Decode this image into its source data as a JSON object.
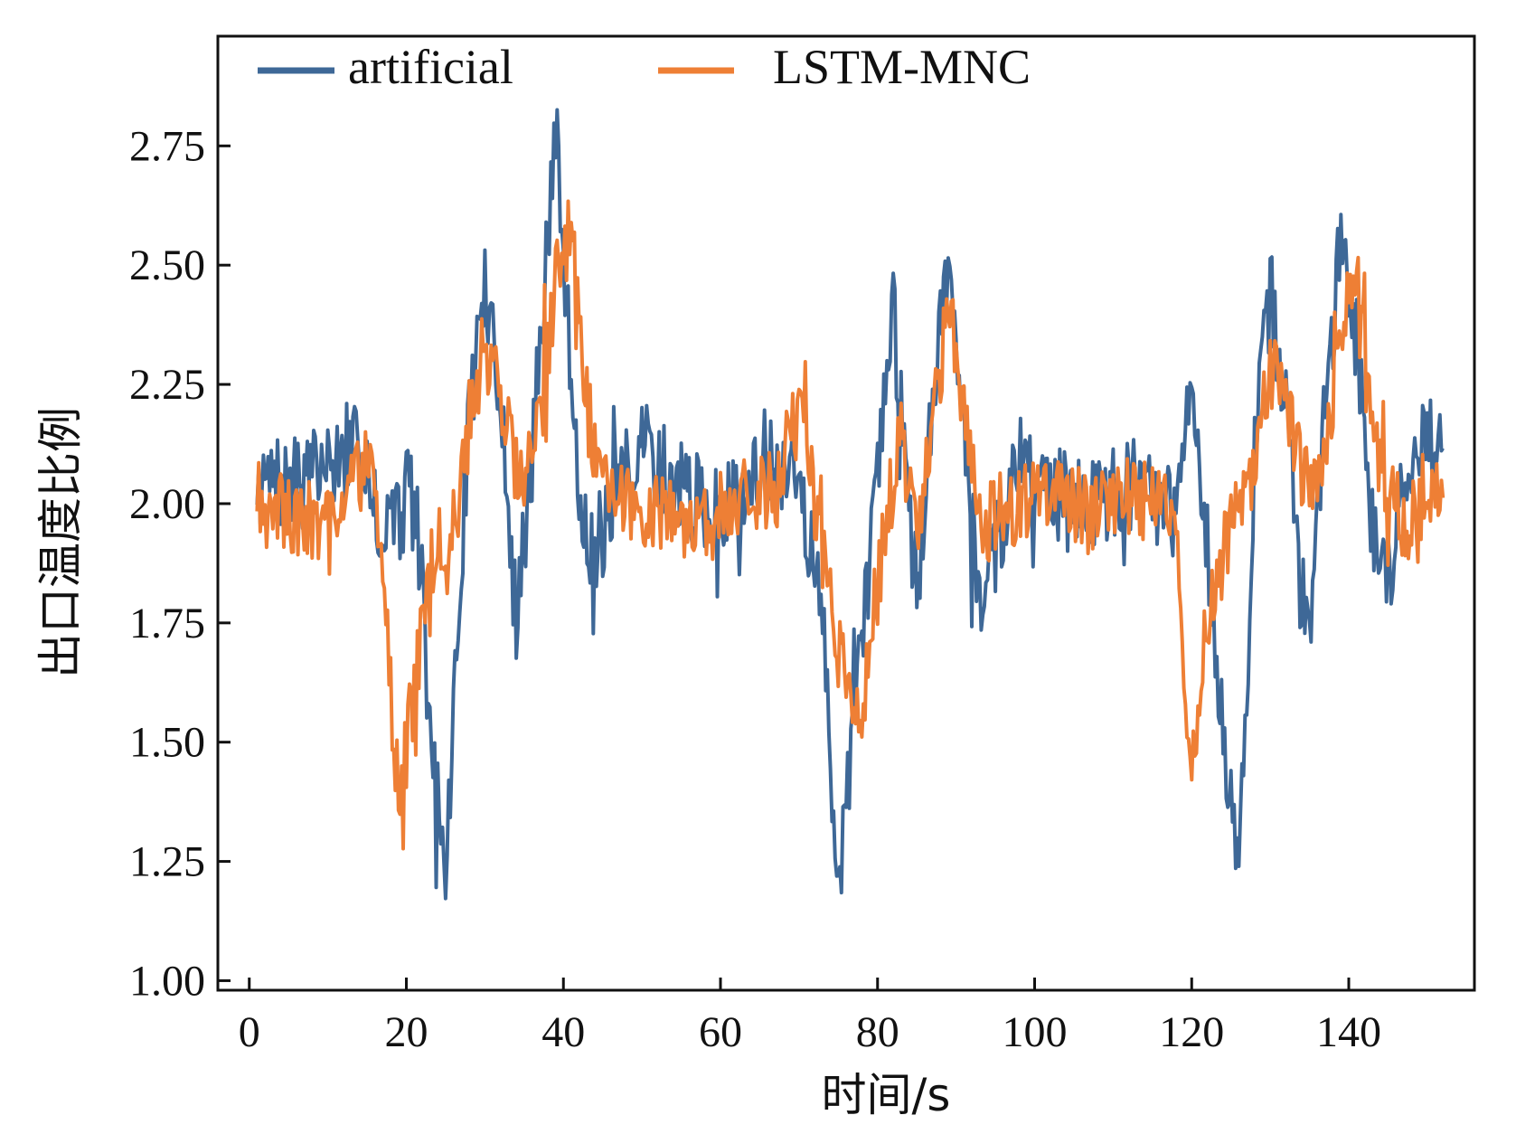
{
  "chart_data": {
    "type": "line",
    "title": "",
    "xlabel": "时间/s",
    "ylabel": "出口温度比例",
    "xlim": [
      -4,
      156
    ],
    "ylim": [
      0.98,
      2.98
    ],
    "xticks": [
      0,
      20,
      40,
      60,
      80,
      100,
      120,
      140
    ],
    "xtick_labels": [
      "0",
      "20",
      "40",
      "60",
      "80",
      "100",
      "120",
      "140"
    ],
    "yticks": [
      1.0,
      1.25,
      1.5,
      1.75,
      2.0,
      2.25,
      2.5,
      2.75
    ],
    "ytick_labels": [
      "1.00",
      "1.25",
      "1.50",
      "1.75",
      "2.00",
      "2.25",
      "2.50",
      "2.75"
    ],
    "grid": false,
    "legend_position": "top",
    "series": [
      {
        "name": "artificial",
        "color": "#3e6897",
        "anchors": [
          [
            1,
            2.05
          ],
          [
            5,
            2.03
          ],
          [
            10,
            2.08
          ],
          [
            15,
            2.12
          ],
          [
            17,
            1.92
          ],
          [
            19,
            2.05
          ],
          [
            20,
            2.1
          ],
          [
            22,
            1.85
          ],
          [
            23,
            1.5
          ],
          [
            25,
            1.22
          ],
          [
            26,
            1.55
          ],
          [
            28,
            2.2
          ],
          [
            30,
            2.45
          ],
          [
            32,
            2.2
          ],
          [
            34,
            1.75
          ],
          [
            36,
            2.1
          ],
          [
            38,
            2.55
          ],
          [
            39,
            2.8
          ],
          [
            40,
            2.5
          ],
          [
            42,
            2.05
          ],
          [
            44,
            1.85
          ],
          [
            46,
            2.0
          ],
          [
            50,
            2.12
          ],
          [
            55,
            2.03
          ],
          [
            60,
            1.97
          ],
          [
            65,
            2.08
          ],
          [
            70,
            2.06
          ],
          [
            73,
            1.75
          ],
          [
            75,
            1.2
          ],
          [
            76,
            1.4
          ],
          [
            78,
            1.7
          ],
          [
            80,
            2.1
          ],
          [
            82,
            2.4
          ],
          [
            83,
            2.2
          ],
          [
            85,
            1.8
          ],
          [
            87,
            2.2
          ],
          [
            89,
            2.55
          ],
          [
            91,
            2.15
          ],
          [
            93,
            1.8
          ],
          [
            95,
            1.9
          ],
          [
            98,
            2.1
          ],
          [
            103,
            2.02
          ],
          [
            108,
            2.0
          ],
          [
            113,
            2.05
          ],
          [
            116,
            1.98
          ],
          [
            118,
            2.0
          ],
          [
            120,
            2.25
          ],
          [
            122,
            1.9
          ],
          [
            124,
            1.5
          ],
          [
            126,
            1.25
          ],
          [
            127,
            1.55
          ],
          [
            128,
            2.1
          ],
          [
            130,
            2.45
          ],
          [
            132,
            2.2
          ],
          [
            134,
            1.8
          ],
          [
            135,
            1.75
          ],
          [
            137,
            2.2
          ],
          [
            139,
            2.55
          ],
          [
            141,
            2.35
          ],
          [
            143,
            1.95
          ],
          [
            145,
            1.85
          ],
          [
            147,
            2.05
          ],
          [
            149,
            2.15
          ],
          [
            152,
            2.1
          ]
        ],
        "noise": 0.1,
        "seed": 7
      },
      {
        "name": "LSTM-MNC",
        "color": "#ee7f35",
        "anchors": [
          [
            1,
            2.03
          ],
          [
            5,
            1.96
          ],
          [
            10,
            1.98
          ],
          [
            15,
            2.08
          ],
          [
            17,
            1.9
          ],
          [
            18,
            1.6
          ],
          [
            19,
            1.38
          ],
          [
            21,
            1.6
          ],
          [
            23,
            1.85
          ],
          [
            24,
            1.95
          ],
          [
            25,
            1.85
          ],
          [
            27,
            2.05
          ],
          [
            29,
            2.3
          ],
          [
            31,
            2.32
          ],
          [
            33,
            2.15
          ],
          [
            35,
            2.02
          ],
          [
            37,
            2.2
          ],
          [
            39,
            2.45
          ],
          [
            41,
            2.6
          ],
          [
            43,
            2.2
          ],
          [
            45,
            2.05
          ],
          [
            48,
            2.0
          ],
          [
            52,
            2.0
          ],
          [
            57,
            1.95
          ],
          [
            62,
            2.0
          ],
          [
            67,
            2.02
          ],
          [
            70,
            2.2
          ],
          [
            72,
            2.0
          ],
          [
            74,
            1.8
          ],
          [
            76,
            1.6
          ],
          [
            78,
            1.55
          ],
          [
            79,
            1.7
          ],
          [
            81,
            1.95
          ],
          [
            83,
            2.15
          ],
          [
            85,
            1.95
          ],
          [
            87,
            2.15
          ],
          [
            89,
            2.4
          ],
          [
            91,
            2.2
          ],
          [
            93,
            1.95
          ],
          [
            95,
            1.97
          ],
          [
            98,
            2.0
          ],
          [
            103,
            2.0
          ],
          [
            108,
            1.98
          ],
          [
            113,
            2.02
          ],
          [
            116,
            2.0
          ],
          [
            118,
            1.95
          ],
          [
            119,
            1.6
          ],
          [
            120,
            1.48
          ],
          [
            122,
            1.75
          ],
          [
            124,
            1.9
          ],
          [
            126,
            2.0
          ],
          [
            128,
            2.05
          ],
          [
            130,
            2.3
          ],
          [
            132,
            2.2
          ],
          [
            134,
            2.05
          ],
          [
            136,
            2.0
          ],
          [
            138,
            2.2
          ],
          [
            140,
            2.45
          ],
          [
            142,
            2.35
          ],
          [
            144,
            2.05
          ],
          [
            146,
            2.0
          ],
          [
            148,
            1.95
          ],
          [
            150,
            2.05
          ],
          [
            152,
            2.05
          ]
        ],
        "noise": 0.09,
        "seed": 19
      }
    ]
  }
}
